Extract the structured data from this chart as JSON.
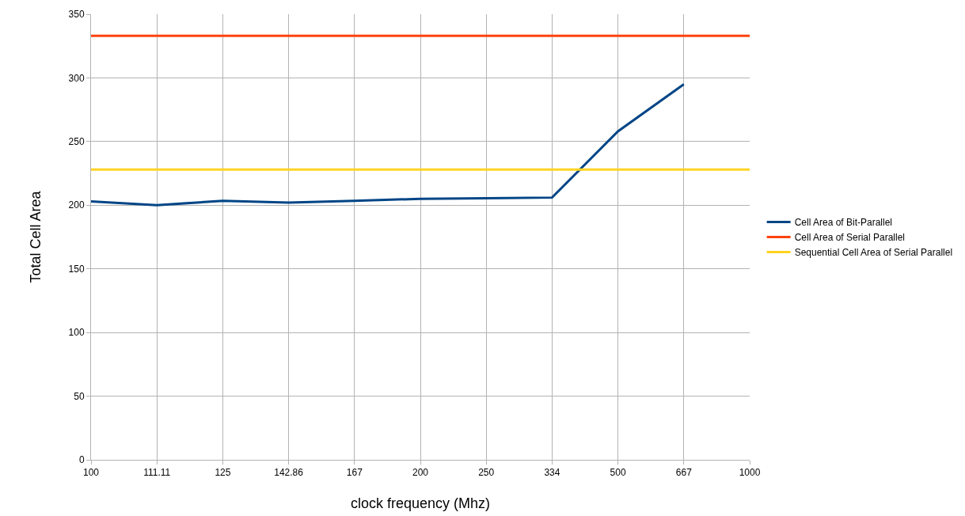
{
  "chart_data": {
    "type": "line",
    "xlabel": "clock frequency (Mhz)",
    "ylabel": "Total Cell Area",
    "categories": [
      "100",
      "111.11",
      "125",
      "142.86",
      "167",
      "200",
      "250",
      "334",
      "500",
      "667",
      "1000"
    ],
    "series": [
      {
        "name": "Cell Area of Bit-Parallel",
        "color": "#004586",
        "values": [
          203,
          200,
          203.5,
          202,
          203.5,
          205,
          205.5,
          206,
          258,
          295,
          null
        ]
      },
      {
        "name": "Cell Area of Serial Parallel",
        "color": "#ff420e",
        "values": [
          333,
          333,
          333,
          333,
          333,
          333,
          333,
          333,
          333,
          333,
          333
        ]
      },
      {
        "name": "Sequential Cell Area of Serial Parallel",
        "color": "#ffd320",
        "values": [
          228,
          228,
          228,
          228,
          228,
          228,
          228,
          228,
          228,
          228,
          228
        ]
      }
    ],
    "ylim": [
      0,
      350
    ],
    "yticks": [
      0,
      50,
      100,
      150,
      200,
      250,
      300,
      350
    ],
    "grid": true,
    "legend": "right",
    "marker": "none",
    "line_style": "solid"
  }
}
